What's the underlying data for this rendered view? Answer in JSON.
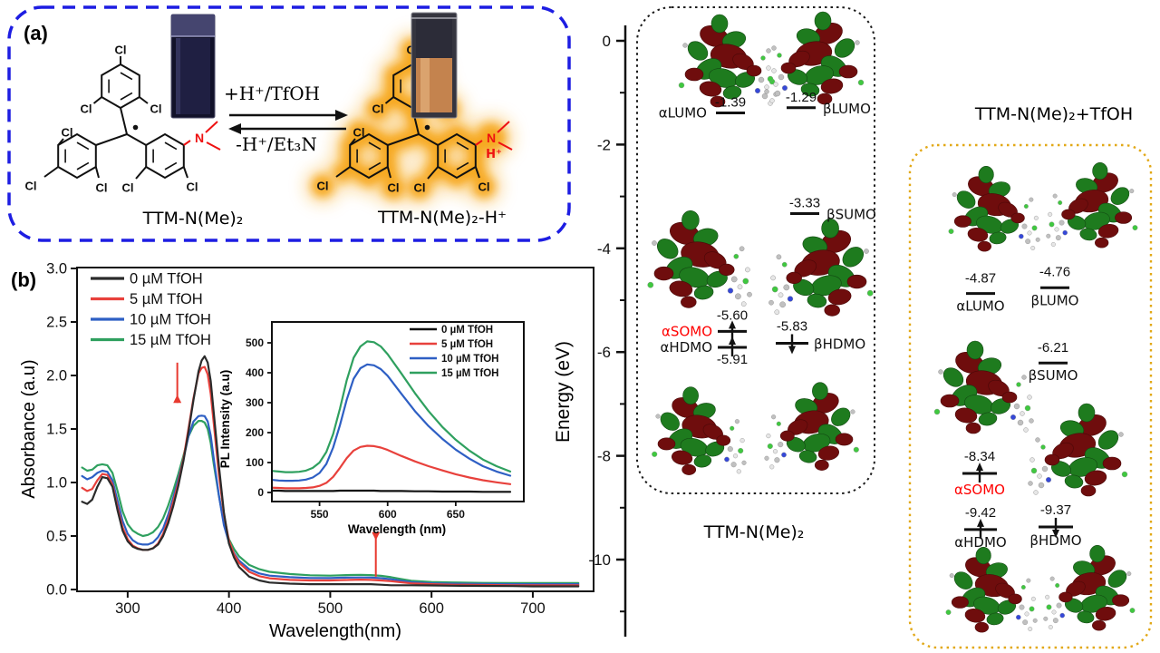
{
  "panel_a": {
    "tag": "(a)",
    "left_molecule_label": "TTM-N(Me)₂",
    "right_molecule_label": "TTM-N(Me)₂-H⁺",
    "forward_reaction_label": "+H⁺/TfOH",
    "reverse_reaction_label": "-H⁺/Et₃N",
    "cl_atom": "Cl",
    "n_atom": "N",
    "proton_label": "H⁺",
    "border_color": "#1d1de2",
    "glow_color": "#F6A512"
  },
  "panel_b": {
    "tag": "(b)"
  },
  "chart_data": [
    {
      "id": "absorbance-spectra",
      "type": "line",
      "title": "",
      "xlabel": "Wavelength(nm)",
      "ylabel": "Absorbance (a.u)",
      "xlim": [
        250,
        760
      ],
      "ylim": [
        0,
        3.0
      ],
      "xticks": [
        300,
        400,
        500,
        600,
        700
      ],
      "yticks": [
        "0.0",
        "0.5",
        "1.0",
        "1.5",
        "2.0",
        "2.5",
        "3.0"
      ],
      "grid": false,
      "legend_position": "top-left",
      "annotations": [
        {
          "dir": "down",
          "x": 349,
          "from": 2.12,
          "to": 1.82,
          "color": "#e8392f"
        },
        {
          "dir": "up",
          "x": 545,
          "from": 0.12,
          "to": 0.46,
          "color": "#e8392f"
        }
      ],
      "series": [
        {
          "name": "0 µM TfOH",
          "color": "#2b2b2b",
          "x": [
            255,
            260,
            265,
            270,
            275,
            280,
            285,
            290,
            295,
            300,
            305,
            310,
            315,
            320,
            325,
            330,
            335,
            340,
            345,
            350,
            355,
            360,
            365,
            370,
            373,
            376,
            379,
            382,
            385,
            390,
            395,
            400,
            405,
            410,
            420,
            430,
            440,
            460,
            480,
            500,
            510,
            520,
            530,
            540,
            550,
            560,
            570,
            580,
            600,
            620,
            650,
            680,
            700,
            720,
            745
          ],
          "y": [
            0.82,
            0.8,
            0.84,
            0.96,
            1.05,
            1.04,
            0.96,
            0.74,
            0.55,
            0.45,
            0.4,
            0.38,
            0.37,
            0.37,
            0.385,
            0.42,
            0.5,
            0.62,
            0.78,
            0.97,
            1.2,
            1.47,
            1.77,
            2.04,
            2.14,
            2.18,
            2.12,
            1.95,
            1.65,
            1.16,
            0.72,
            0.43,
            0.3,
            0.21,
            0.12,
            0.085,
            0.065,
            0.055,
            0.05,
            0.05,
            0.05,
            0.05,
            0.05,
            0.05,
            0.045,
            0.04,
            0.04,
            0.04,
            0.038,
            0.036,
            0.034,
            0.032,
            0.03,
            0.03,
            0.03
          ]
        },
        {
          "name": "5 µM TfOH",
          "color": "#e8413c",
          "x": [
            255,
            260,
            265,
            270,
            275,
            280,
            285,
            290,
            295,
            300,
            305,
            310,
            315,
            320,
            325,
            330,
            335,
            340,
            345,
            350,
            355,
            360,
            365,
            370,
            373,
            376,
            379,
            382,
            385,
            390,
            395,
            400,
            405,
            410,
            420,
            430,
            440,
            460,
            480,
            500,
            510,
            520,
            530,
            540,
            550,
            560,
            570,
            580,
            600,
            620,
            650,
            680,
            700,
            720,
            745
          ],
          "y": [
            0.95,
            0.92,
            0.94,
            1.02,
            1.08,
            1.07,
            0.98,
            0.77,
            0.58,
            0.47,
            0.41,
            0.385,
            0.37,
            0.37,
            0.385,
            0.43,
            0.52,
            0.65,
            0.82,
            1.0,
            1.22,
            1.5,
            1.79,
            2.02,
            2.07,
            2.08,
            2.01,
            1.83,
            1.55,
            1.08,
            0.7,
            0.46,
            0.33,
            0.25,
            0.165,
            0.125,
            0.105,
            0.09,
            0.085,
            0.085,
            0.087,
            0.09,
            0.092,
            0.09,
            0.085,
            0.078,
            0.068,
            0.058,
            0.05,
            0.045,
            0.042,
            0.04,
            0.04,
            0.04,
            0.04
          ]
        },
        {
          "name": "10 µM TfOH",
          "color": "#2e5fc4",
          "x": [
            255,
            260,
            265,
            270,
            275,
            280,
            285,
            290,
            295,
            300,
            305,
            310,
            315,
            320,
            325,
            330,
            335,
            340,
            345,
            350,
            355,
            360,
            365,
            370,
            373,
            376,
            379,
            382,
            385,
            390,
            395,
            400,
            405,
            410,
            420,
            430,
            440,
            460,
            480,
            500,
            510,
            520,
            530,
            540,
            550,
            560,
            570,
            580,
            600,
            620,
            650,
            680,
            700,
            720,
            745
          ],
          "y": [
            1.06,
            1.03,
            1.05,
            1.09,
            1.11,
            1.1,
            1.02,
            0.83,
            0.64,
            0.52,
            0.46,
            0.43,
            0.42,
            0.42,
            0.44,
            0.49,
            0.57,
            0.7,
            0.86,
            1.03,
            1.22,
            1.43,
            1.57,
            1.62,
            1.625,
            1.62,
            1.57,
            1.44,
            1.22,
            0.88,
            0.6,
            0.44,
            0.34,
            0.27,
            0.19,
            0.15,
            0.13,
            0.115,
            0.108,
            0.107,
            0.11,
            0.112,
            0.113,
            0.112,
            0.106,
            0.096,
            0.082,
            0.068,
            0.058,
            0.054,
            0.052,
            0.05,
            0.05,
            0.05,
            0.05
          ]
        },
        {
          "name": "15 µM TfOH",
          "color": "#2fa05f",
          "x": [
            255,
            260,
            265,
            270,
            275,
            280,
            285,
            290,
            295,
            300,
            305,
            310,
            315,
            320,
            325,
            330,
            335,
            340,
            345,
            350,
            355,
            360,
            365,
            370,
            373,
            376,
            379,
            382,
            385,
            390,
            395,
            400,
            405,
            410,
            420,
            430,
            440,
            460,
            480,
            500,
            510,
            520,
            530,
            540,
            550,
            560,
            570,
            580,
            600,
            620,
            650,
            680,
            700,
            720,
            745
          ],
          "y": [
            1.14,
            1.11,
            1.12,
            1.16,
            1.17,
            1.16,
            1.09,
            0.92,
            0.73,
            0.61,
            0.55,
            0.52,
            0.5,
            0.51,
            0.535,
            0.585,
            0.665,
            0.785,
            0.925,
            1.08,
            1.25,
            1.43,
            1.53,
            1.575,
            1.575,
            1.56,
            1.5,
            1.37,
            1.17,
            0.88,
            0.62,
            0.47,
            0.38,
            0.31,
            0.23,
            0.19,
            0.165,
            0.145,
            0.133,
            0.13,
            0.133,
            0.136,
            0.137,
            0.135,
            0.128,
            0.115,
            0.098,
            0.082,
            0.07,
            0.066,
            0.062,
            0.06,
            0.06,
            0.06,
            0.06
          ]
        }
      ]
    },
    {
      "id": "pl-spectra-inset",
      "type": "line",
      "title": "",
      "xlabel": "Wavelength (nm)",
      "ylabel": "PL Intensity (a.u)",
      "xlim": [
        515,
        700
      ],
      "ylim": [
        -30,
        570
      ],
      "xticks": [
        550,
        600,
        650
      ],
      "yticks": [
        0,
        100,
        200,
        300,
        400,
        500
      ],
      "grid": false,
      "legend_position": "top-right",
      "series": [
        {
          "name": "0 µM TfOH",
          "color": "#111111",
          "x": [
            515,
            520,
            525,
            530,
            535,
            540,
            545,
            550,
            555,
            560,
            565,
            570,
            575,
            580,
            585,
            590,
            595,
            600,
            610,
            620,
            630,
            640,
            650,
            660,
            670,
            680,
            690
          ],
          "y": [
            6,
            6,
            5,
            5,
            5,
            5,
            5,
            5,
            5,
            5,
            6,
            6,
            6,
            6,
            6,
            6,
            5,
            5,
            5,
            4,
            4,
            3,
            3,
            3,
            2,
            2,
            2
          ]
        },
        {
          "name": "5 µM TfOH",
          "color": "#e8413c",
          "x": [
            515,
            520,
            525,
            530,
            535,
            540,
            545,
            550,
            555,
            560,
            565,
            570,
            575,
            580,
            585,
            590,
            595,
            600,
            610,
            620,
            630,
            640,
            650,
            660,
            670,
            680,
            690
          ],
          "y": [
            16,
            15,
            14,
            14,
            14,
            15,
            17,
            22,
            32,
            52,
            82,
            115,
            140,
            152,
            156,
            155,
            150,
            142,
            122,
            104,
            88,
            74,
            61,
            50,
            41,
            34,
            28
          ]
        },
        {
          "name": "10 µM TfOH",
          "color": "#2e5fc4",
          "x": [
            515,
            520,
            525,
            530,
            535,
            540,
            545,
            550,
            555,
            560,
            565,
            570,
            575,
            580,
            585,
            590,
            595,
            600,
            610,
            620,
            630,
            640,
            650,
            660,
            670,
            680,
            690
          ],
          "y": [
            42,
            40,
            39,
            39,
            40,
            43,
            50,
            65,
            95,
            150,
            225,
            310,
            380,
            415,
            428,
            425,
            412,
            390,
            330,
            272,
            222,
            180,
            143,
            113,
            88,
            70,
            56
          ]
        },
        {
          "name": "15 µM TfOH",
          "color": "#2fa05f",
          "x": [
            515,
            520,
            525,
            530,
            535,
            540,
            545,
            550,
            555,
            560,
            565,
            570,
            575,
            580,
            585,
            590,
            595,
            600,
            610,
            620,
            630,
            640,
            650,
            660,
            670,
            680,
            690
          ],
          "y": [
            72,
            70,
            68,
            68,
            69,
            73,
            82,
            100,
            135,
            195,
            280,
            375,
            450,
            488,
            505,
            502,
            488,
            462,
            398,
            332,
            272,
            220,
            176,
            140,
            110,
            88,
            70
          ]
        }
      ]
    }
  ],
  "energy_diagram": {
    "axis_label": "Energy (eV)",
    "tick_labels": [
      "0",
      "-2",
      "-4",
      "-6",
      "-8",
      "-10"
    ],
    "tick_values": [
      0,
      -2,
      -4,
      -6,
      -8,
      -10
    ],
    "level_color": "#111111",
    "somo_color": "#ff0000",
    "orbital_colors": {
      "positive_lobe": "#6f0d0d",
      "negative_lobe": "#1e7b1e"
    },
    "groups": [
      {
        "title": "TTM-N(Me)₂",
        "border_style": "black-dotted",
        "levels": [
          {
            "name": "αLUMO",
            "value": -1.39,
            "text": "-1.39",
            "occ": ""
          },
          {
            "name": "βLUMO",
            "value": -1.29,
            "text": "-1.29",
            "occ": ""
          },
          {
            "name": "βSUMO",
            "value": -3.33,
            "text": "-3.33",
            "occ": ""
          },
          {
            "name": "αSOMO",
            "value": -5.6,
            "text": "-5.60",
            "occ": "up",
            "name_color": "#ff0000"
          },
          {
            "name": "αHDMO",
            "value": -5.91,
            "text": "-5.91",
            "occ": "up"
          },
          {
            "name": "βHDMO",
            "value": -5.83,
            "text": "-5.83",
            "occ": "down"
          }
        ]
      },
      {
        "title": "TTM-N(Me)₂+TfOH",
        "border_style": "orange-dotted",
        "border_color": "#e2a816",
        "levels": [
          {
            "name": "αLUMO",
            "value": -4.87,
            "text": "-4.87",
            "occ": ""
          },
          {
            "name": "βLUMO",
            "value": -4.76,
            "text": "-4.76",
            "occ": ""
          },
          {
            "name": "βSUMO",
            "value": -6.21,
            "text": "-6.21",
            "occ": ""
          },
          {
            "name": "αSOMO",
            "value": -8.34,
            "text": "-8.34",
            "occ": "up",
            "name_color": "#ff0000"
          },
          {
            "name": "αHDMO",
            "value": -9.42,
            "text": "-9.42",
            "occ": "up"
          },
          {
            "name": "βHDMO",
            "value": -9.37,
            "text": "-9.37",
            "occ": "down"
          }
        ]
      }
    ]
  }
}
